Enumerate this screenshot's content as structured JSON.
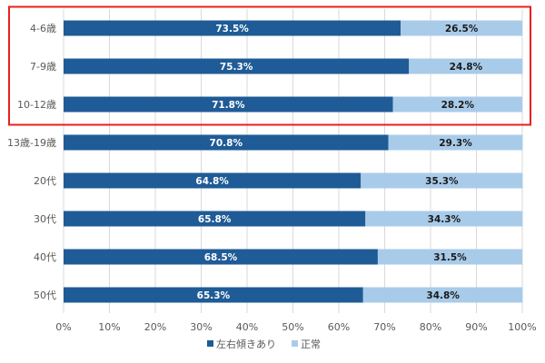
{
  "chart_data": {
    "type": "bar",
    "orientation": "horizontal",
    "stacked": "percent",
    "categories": [
      "4-6歳",
      "7-9歳",
      "10-12歳",
      "13歳-19歳",
      "20代",
      "30代",
      "40代",
      "50代"
    ],
    "series": [
      {
        "name": "左右傾きあり",
        "color": "#1f5b96",
        "label_color": "#ffffff",
        "values": [
          73.5,
          75.3,
          71.8,
          70.8,
          64.8,
          65.8,
          68.5,
          65.3
        ],
        "labels": [
          "73.5%",
          "75.3%",
          "71.8%",
          "70.8%",
          "64.8%",
          "65.8%",
          "68.5%",
          "65.3%"
        ]
      },
      {
        "name": "正常",
        "color": "#a9cbea",
        "label_color": "#1a1a1a",
        "values": [
          26.5,
          24.8,
          28.2,
          29.3,
          35.3,
          34.3,
          31.5,
          34.8
        ],
        "labels": [
          "26.5%",
          "24.8%",
          "28.2%",
          "29.3%",
          "35.3%",
          "34.3%",
          "31.5%",
          "34.8%"
        ]
      }
    ],
    "xlim": [
      0,
      100
    ],
    "xticks": [
      "0%",
      "10%",
      "20%",
      "30%",
      "40%",
      "50%",
      "60%",
      "70%",
      "80%",
      "90%",
      "100%"
    ],
    "grid": true,
    "legend_position": "bottom",
    "highlight": {
      "categories": [
        "4-6歳",
        "7-9歳",
        "10-12歳"
      ],
      "color": "#e8201f"
    }
  }
}
